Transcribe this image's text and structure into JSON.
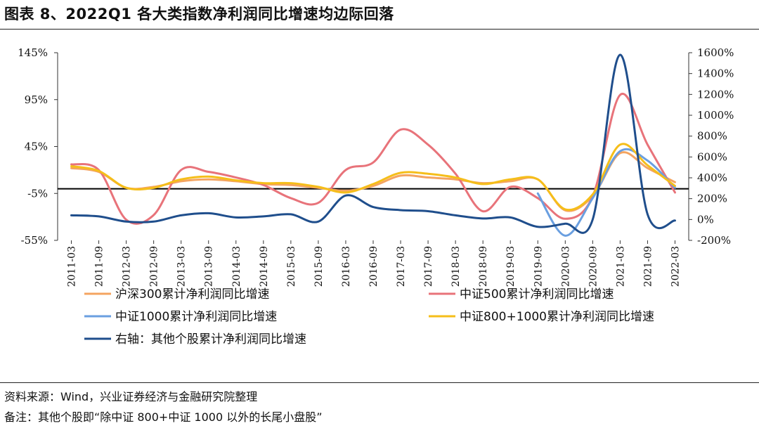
{
  "title": "图表 8、2022Q1 各大类指数净利润同比增速均边际回落",
  "source": "资料来源：Wind，兴业证券经济与金融研究院整理",
  "note": "备注：其他个股即“除中证 800+中证 1000 以外的长尾小盘股”",
  "chart_data": {
    "type": "line",
    "title": "",
    "x": [
      "2011-03",
      "2011-09",
      "2012-03",
      "2012-09",
      "2013-03",
      "2013-09",
      "2014-03",
      "2014-09",
      "2015-03",
      "2015-09",
      "2016-03",
      "2016-09",
      "2017-03",
      "2017-09",
      "2018-03",
      "2018-09",
      "2019-03",
      "2019-09",
      "2020-03",
      "2020-09",
      "2021-03",
      "2021-09",
      "2022-03"
    ],
    "left_axis": {
      "min": -55,
      "max": 145,
      "ticks": [
        -55,
        -5,
        45,
        95,
        145
      ],
      "tick_labels": [
        "-55%",
        "-5%",
        "45%",
        "95%",
        "145%"
      ]
    },
    "right_axis": {
      "min": -200,
      "max": 1600,
      "ticks": [
        -200,
        0,
        200,
        400,
        600,
        800,
        1000,
        1200,
        1400,
        1600
      ],
      "tick_labels": [
        "-200%",
        "0%",
        "200%",
        "400%",
        "600%",
        "800%",
        "1000%",
        "1200%",
        "1400%",
        "1600%"
      ]
    },
    "zero_line": 0,
    "grid": false,
    "legend_position": "bottom",
    "series": [
      {
        "name": "沪深300累计净利润同比增速",
        "axis": "left",
        "color": "#F4A460",
        "values": [
          22,
          18,
          1,
          2,
          8,
          10,
          8,
          5,
          4,
          1,
          -2,
          3,
          14,
          12,
          10,
          6,
          8,
          10,
          -23,
          -8,
          38,
          22,
          7
        ]
      },
      {
        "name": "中证500累计净利润同比增速",
        "axis": "left",
        "color": "#E8737A",
        "values": [
          26,
          20,
          -33,
          -28,
          20,
          18,
          12,
          4,
          -10,
          -15,
          20,
          28,
          63,
          47,
          16,
          -24,
          2,
          -10,
          -32,
          -8,
          100,
          47,
          -4
        ]
      },
      {
        "name": "中证1000累计净利润同比增速",
        "axis": "left",
        "color": "#6A9FE0",
        "values": [
          null,
          null,
          null,
          null,
          null,
          null,
          null,
          null,
          null,
          null,
          null,
          null,
          null,
          null,
          null,
          null,
          null,
          -5,
          -50,
          -10,
          40,
          30,
          1
        ]
      },
      {
        "name": "中证800+1000累计净利润同比增速",
        "axis": "left",
        "color": "#F5BE1A",
        "values": [
          24,
          19,
          1,
          1,
          10,
          13,
          9,
          6,
          6,
          2,
          -4,
          5,
          17,
          16,
          12,
          5,
          10,
          10,
          -22,
          -6,
          47,
          25,
          3
        ]
      },
      {
        "name": "右轴：其他个股累计净利润同比增速",
        "axis": "right",
        "color": "#1F4E8C",
        "values": [
          40,
          30,
          -20,
          -20,
          40,
          60,
          20,
          30,
          50,
          -20,
          230,
          120,
          90,
          80,
          40,
          10,
          20,
          -70,
          -40,
          0,
          1580,
          50,
          -10
        ]
      }
    ]
  }
}
